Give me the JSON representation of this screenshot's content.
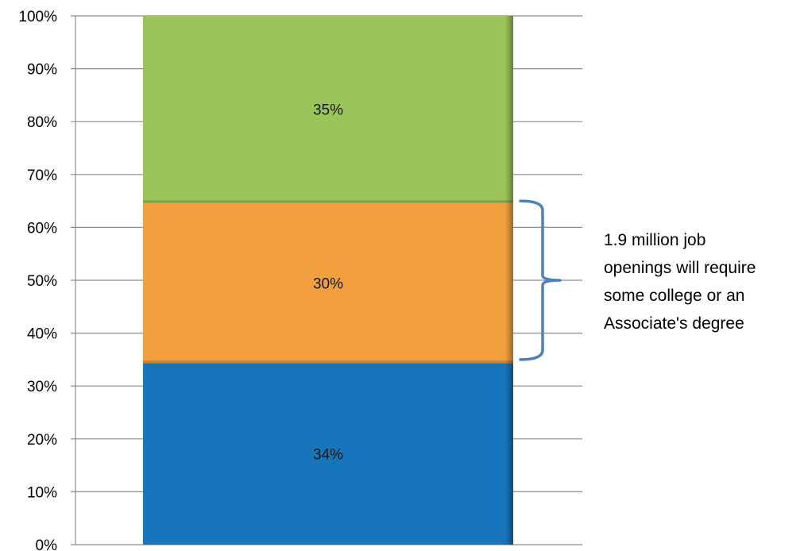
{
  "chart_data": {
    "type": "bar",
    "stacked": true,
    "percent_stacked": true,
    "categories": [
      ""
    ],
    "series": [
      {
        "values": [
          34
        ],
        "color": "#1874bb",
        "label": "34%"
      },
      {
        "values": [
          30
        ],
        "color": "#f29f40",
        "label": "30%"
      },
      {
        "values": [
          35
        ],
        "color": "#9bc45b",
        "label": "35%"
      }
    ],
    "title": "",
    "xlabel": "",
    "ylabel": "",
    "ylim": [
      0,
      100
    ],
    "yticks": [
      "0%",
      "10%",
      "20%",
      "30%",
      "40%",
      "50%",
      "60%",
      "70%",
      "80%",
      "90%",
      "100%"
    ],
    "grid": true,
    "legend": "none",
    "annotation": {
      "lines": [
        "1.9 million job",
        "openings will require",
        "some college or an",
        "Associate's degree"
      ],
      "bracket_color": "#4f81bd",
      "bracket_span": [
        35,
        65
      ]
    }
  }
}
